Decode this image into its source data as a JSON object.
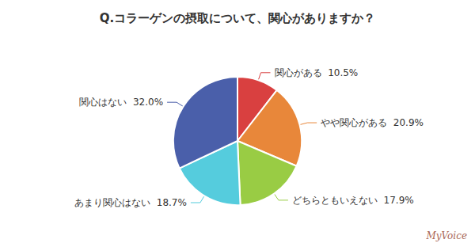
{
  "chart_data": {
    "type": "pie",
    "title": "Q.コラーゲンの摂取について、関心がありますか？",
    "categories": [
      "関心がある",
      "やや関心がある",
      "どちらともいえない",
      "あまり関心はない",
      "関心はない"
    ],
    "values": [
      10.5,
      20.9,
      17.9,
      18.7,
      32.0
    ],
    "value_labels": [
      "関心がある  10.5%",
      "やや関心がある  20.9%",
      "どちらともいえない  17.9%",
      "あまり関心はない  18.7%",
      "関心はない  32.0%"
    ],
    "colors": [
      "#d94040",
      "#e8873a",
      "#99cc44",
      "#55ccdd",
      "#4a5faa"
    ],
    "data_labels": true,
    "annotations": [
      "MyVoice"
    ]
  }
}
